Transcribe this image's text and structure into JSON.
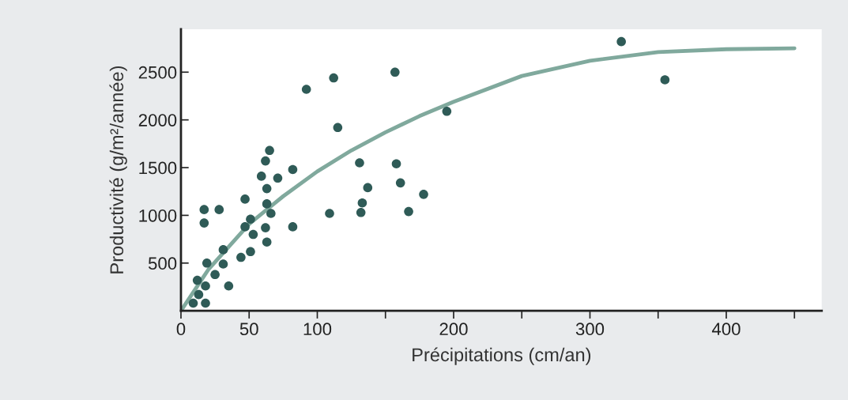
{
  "chart_data": {
    "type": "scatter",
    "xlabel": "Précipitations (cm/an)",
    "ylabel": "Productivité (g/m²/année)",
    "xlim": [
      0,
      470
    ],
    "xticks": [
      0,
      50,
      100,
      {
        "value": 150,
        "label": null
      },
      200,
      {
        "value": 250,
        "label": null
      },
      300,
      {
        "value": 350,
        "label": null
      },
      400,
      {
        "value": 450,
        "label": null
      }
    ],
    "ylim": [
      0,
      2950
    ],
    "yticks": [
      500,
      1000,
      1500,
      2000,
      2500
    ],
    "grid": false,
    "marker": "circle",
    "series": [
      {
        "color": "#2f5b57",
        "x": [
          9,
          18,
          13,
          12,
          18,
          35,
          25,
          19,
          31,
          31,
          44,
          51,
          63,
          53,
          62,
          47,
          51,
          66,
          63,
          17,
          17,
          28,
          47,
          63,
          59,
          71,
          62,
          65,
          82,
          82,
          92,
          112,
          115,
          109,
          131,
          133,
          132,
          137,
          157,
          158,
          161,
          167,
          178,
          195,
          323,
          355
        ],
        "values": [
          80,
          80,
          170,
          320,
          260,
          260,
          380,
          500,
          490,
          640,
          560,
          620,
          720,
          800,
          870,
          880,
          960,
          1020,
          1120,
          920,
          1060,
          1060,
          1170,
          1280,
          1410,
          1390,
          1570,
          1680,
          1480,
          880,
          2320,
          2440,
          1920,
          1020,
          1550,
          1130,
          1030,
          1290,
          2500,
          1540,
          1340,
          1040,
          1220,
          2090,
          2820,
          2420
        ]
      },
      {
        "type": "line",
        "color": "#80a99d",
        "line_style": "solid",
        "marker": "none",
        "x": [
          0,
          20,
          50,
          75,
          100,
          125,
          150,
          175,
          200,
          250,
          300,
          350,
          400,
          450
        ],
        "values": [
          0,
          430,
          910,
          1200,
          1460,
          1680,
          1870,
          2040,
          2190,
          2460,
          2620,
          2710,
          2740,
          2750
        ]
      }
    ]
  }
}
